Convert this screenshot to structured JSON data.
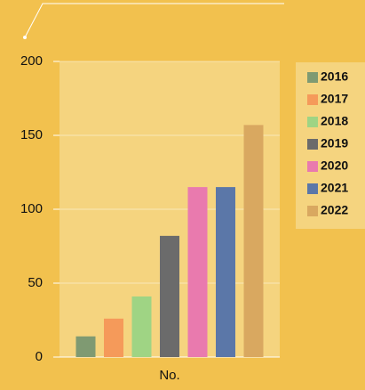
{
  "chart_data": {
    "type": "bar",
    "categories": [
      "No."
    ],
    "series": [
      {
        "name": "2016",
        "color": "#7f9a72",
        "values": [
          14
        ]
      },
      {
        "name": "2017",
        "color": "#f59a5a",
        "values": [
          26
        ]
      },
      {
        "name": "2018",
        "color": "#9fd484",
        "values": [
          41
        ]
      },
      {
        "name": "2019",
        "color": "#6b6b6b",
        "values": [
          82
        ]
      },
      {
        "name": "2020",
        "color": "#e97aae",
        "values": [
          115
        ]
      },
      {
        "name": "2021",
        "color": "#5b77a8",
        "values": [
          115
        ]
      },
      {
        "name": "2022",
        "color": "#d9a860",
        "values": [
          157
        ]
      }
    ],
    "ylim": [
      0,
      200
    ],
    "yticks": [
      0,
      50,
      100,
      150,
      200
    ],
    "grid": true,
    "legend": "right"
  }
}
